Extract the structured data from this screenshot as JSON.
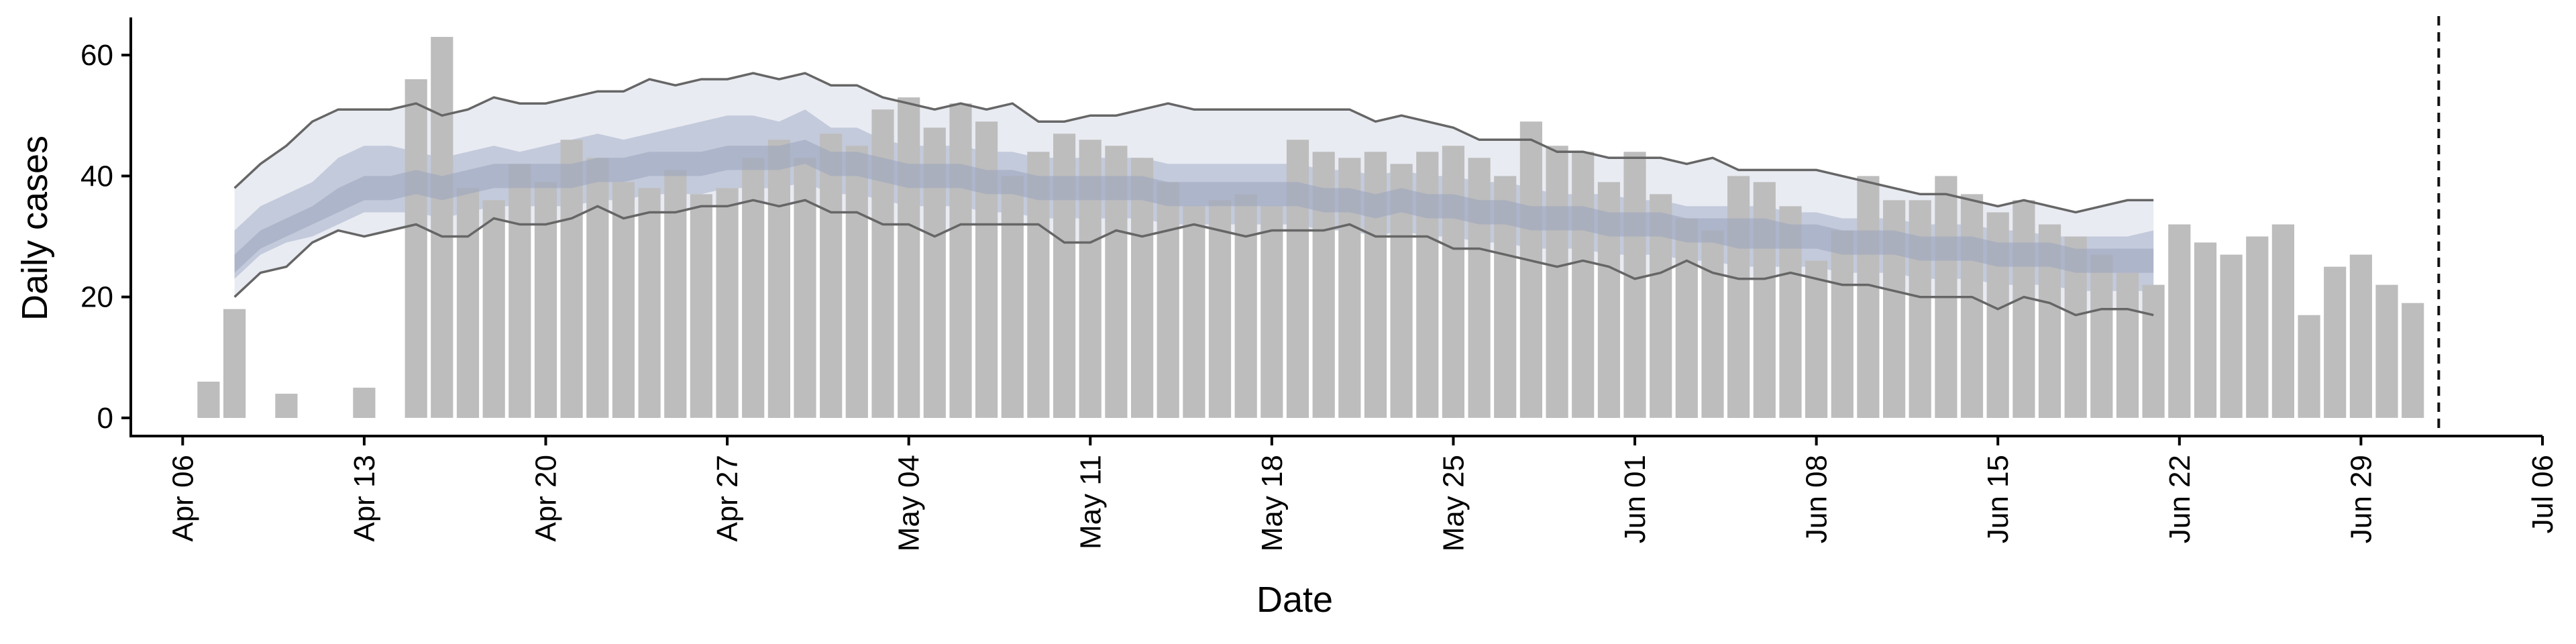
{
  "chart_data": {
    "type": "bar",
    "xlabel": "Date",
    "ylabel": "Daily cases",
    "ylim": [
      -3,
      66
    ],
    "yticks": [
      0,
      20,
      40,
      60
    ],
    "grid": false,
    "x_axis_ticks": [
      "2020-04-06",
      "2020-04-13",
      "2020-04-20",
      "2020-04-27",
      "2020-05-04",
      "2020-05-11",
      "2020-05-18",
      "2020-05-25",
      "2020-06-01",
      "2020-06-08",
      "2020-06-15",
      "2020-06-22",
      "2020-06-29",
      "2020-07-06"
    ],
    "x_tick_labels": [
      "Apr 06",
      "Apr 13",
      "Apr 20",
      "Apr 27",
      "May 04",
      "May 11",
      "May 18",
      "May 25",
      "Jun 01",
      "Jun 08",
      "Jun 15",
      "Jun 22",
      "Jun 29",
      "Jul 06"
    ],
    "x_range": [
      "2020-04-04",
      "2020-07-06"
    ],
    "vline_date": "2020-07-02",
    "bar_color": "#bdbdbd",
    "band_outer_color": "#e9ebf2",
    "band_inner_color": "#c3cadb",
    "median_band_color": "#9aa4bd",
    "bound_line_color": "#666666",
    "cases": {
      "start": "2020-04-07",
      "values": [
        6,
        18,
        0,
        4,
        0,
        0,
        5,
        0,
        56,
        63,
        38,
        36,
        42,
        39,
        46,
        43,
        39,
        38,
        41,
        37,
        38,
        43,
        46,
        43,
        47,
        45,
        51,
        53,
        48,
        52,
        49,
        40,
        44,
        47,
        46,
        45,
        43,
        39,
        35,
        36,
        37,
        35,
        46,
        44,
        43,
        44,
        42,
        44,
        45,
        43,
        40,
        49,
        45,
        44,
        39,
        44,
        37,
        33,
        31,
        40,
        39,
        35,
        26,
        31,
        40,
        36,
        36,
        40,
        37,
        34,
        36,
        32,
        30,
        27,
        24,
        22,
        32,
        29,
        27,
        30,
        32,
        17,
        25,
        27,
        22,
        19
      ]
    },
    "estimate": {
      "start": "2020-04-08",
      "upper_90": [
        38,
        42,
        45,
        49,
        51,
        51,
        51,
        52,
        50,
        51,
        53,
        52,
        52,
        53,
        54,
        54,
        56,
        55,
        56,
        56,
        57,
        56,
        57,
        55,
        55,
        53,
        52,
        51,
        52,
        51,
        52,
        49,
        49,
        50,
        50,
        51,
        52,
        51,
        51,
        51,
        51,
        51,
        51,
        51,
        49,
        50,
        49,
        48,
        46,
        46,
        46,
        44,
        44,
        43,
        43,
        43,
        42,
        43,
        41,
        41,
        41,
        41,
        40,
        39,
        38,
        37,
        37,
        36,
        35,
        36,
        35,
        34,
        35,
        36,
        36
      ],
      "upper_50": [
        31,
        35,
        37,
        39,
        43,
        45,
        45,
        44,
        43,
        44,
        45,
        44,
        45,
        46,
        47,
        46,
        47,
        48,
        49,
        50,
        50,
        49,
        51,
        48,
        48,
        46,
        45,
        45,
        45,
        44,
        44,
        43,
        43,
        43,
        43,
        43,
        42,
        42,
        42,
        42,
        42,
        42,
        41,
        41,
        40,
        41,
        40,
        40,
        39,
        39,
        38,
        37,
        37,
        37,
        36,
        36,
        35,
        35,
        35,
        35,
        34,
        34,
        33,
        33,
        33,
        32,
        32,
        32,
        31,
        31,
        30,
        30,
        30,
        30,
        31
      ],
      "median_high": [
        27,
        31,
        33,
        35,
        38,
        40,
        40,
        41,
        40,
        41,
        42,
        42,
        42,
        42,
        43,
        43,
        44,
        44,
        44,
        45,
        45,
        45,
        46,
        44,
        44,
        43,
        42,
        42,
        42,
        41,
        41,
        40,
        40,
        40,
        40,
        40,
        39,
        39,
        39,
        39,
        39,
        39,
        38,
        38,
        37,
        38,
        37,
        37,
        36,
        36,
        35,
        35,
        35,
        34,
        34,
        34,
        33,
        33,
        33,
        33,
        32,
        32,
        31,
        31,
        31,
        30,
        30,
        30,
        29,
        29,
        29,
        28,
        28,
        28,
        28
      ],
      "median_low": [
        24,
        28,
        30,
        32,
        34,
        36,
        36,
        37,
        36,
        37,
        38,
        38,
        38,
        38,
        39,
        39,
        40,
        40,
        40,
        41,
        41,
        41,
        42,
        40,
        40,
        39,
        38,
        38,
        38,
        37,
        37,
        36,
        36,
        36,
        36,
        36,
        35,
        35,
        35,
        35,
        35,
        35,
        34,
        34,
        33,
        34,
        33,
        33,
        32,
        32,
        31,
        31,
        31,
        30,
        30,
        30,
        29,
        29,
        28,
        28,
        28,
        28,
        27,
        27,
        27,
        26,
        26,
        26,
        25,
        25,
        25,
        24,
        24,
        24,
        24
      ],
      "lower_50": [
        23,
        27,
        29,
        30,
        32,
        34,
        34,
        34,
        33,
        34,
        35,
        35,
        35,
        35,
        36,
        36,
        37,
        37,
        37,
        38,
        38,
        38,
        39,
        37,
        37,
        36,
        35,
        35,
        35,
        34,
        34,
        33,
        33,
        33,
        33,
        33,
        32,
        32,
        32,
        32,
        32,
        32,
        31,
        31,
        30,
        31,
        30,
        30,
        29,
        29,
        28,
        28,
        28,
        27,
        27,
        27,
        26,
        26,
        25,
        25,
        25,
        25,
        24,
        24,
        24,
        23,
        23,
        23,
        22,
        22,
        22,
        21,
        21,
        21,
        21
      ],
      "lower_90": [
        20,
        24,
        25,
        29,
        31,
        30,
        31,
        32,
        30,
        30,
        33,
        32,
        32,
        33,
        35,
        33,
        34,
        34,
        35,
        35,
        36,
        35,
        36,
        34,
        34,
        32,
        32,
        30,
        32,
        32,
        32,
        32,
        29,
        29,
        31,
        30,
        31,
        32,
        31,
        30,
        31,
        31,
        31,
        32,
        30,
        30,
        30,
        28,
        28,
        27,
        26,
        25,
        26,
        25,
        23,
        24,
        26,
        24,
        23,
        23,
        24,
        23,
        22,
        22,
        21,
        20,
        20,
        20,
        18,
        20,
        19,
        17,
        18,
        18,
        17
      ]
    }
  }
}
